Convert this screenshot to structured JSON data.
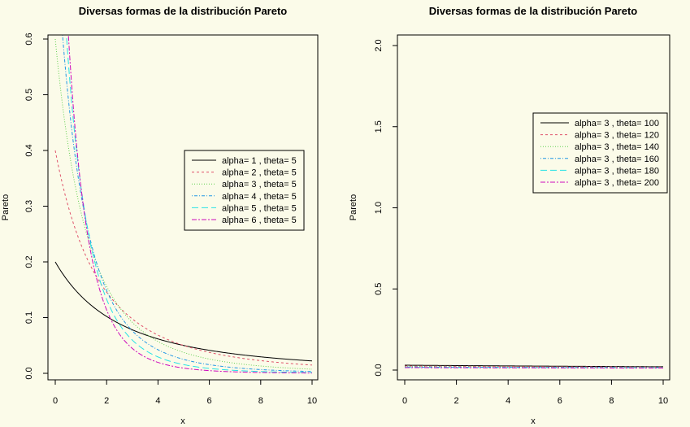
{
  "chart_data": [
    {
      "type": "line",
      "title": "Diversas formas de la distribución Pareto",
      "xlabel": "x",
      "ylabel": "Pareto",
      "xlim": [
        0,
        10
      ],
      "ylim": [
        0,
        0.6
      ],
      "xticks": [
        "0",
        "2",
        "4",
        "6",
        "8",
        "10"
      ],
      "yticks": [
        "0.0",
        "0.1",
        "0.2",
        "0.3",
        "0.4",
        "0.5",
        "0.6"
      ],
      "legend_position": "right",
      "series": [
        {
          "name": "alpha= 1  , theta= 5",
          "alpha": 1,
          "theta": 5,
          "color": "#000000",
          "dash": ""
        },
        {
          "name": "alpha= 2  , theta= 5",
          "alpha": 2,
          "theta": 5,
          "color": "#df536b",
          "dash": "3,3"
        },
        {
          "name": "alpha= 3  , theta= 5",
          "alpha": 3,
          "theta": 5,
          "color": "#61d04f",
          "dash": "1,2"
        },
        {
          "name": "alpha= 4  , theta= 5",
          "alpha": 4,
          "theta": 5,
          "color": "#2297e6",
          "dash": "1,2,4,2"
        },
        {
          "name": "alpha= 5  , theta= 5",
          "alpha": 5,
          "theta": 5,
          "color": "#28e2e5",
          "dash": "8,4"
        },
        {
          "name": "alpha= 6  , theta= 5",
          "alpha": 6,
          "theta": 5,
          "color": "#cd0bbc",
          "dash": "6,2,2,2"
        }
      ]
    },
    {
      "type": "line",
      "title": "Diversas formas de la distribución Pareto",
      "xlabel": "x",
      "ylabel": "Pareto",
      "xlim": [
        0,
        10
      ],
      "ylim": [
        0,
        2.0
      ],
      "xticks": [
        "0",
        "2",
        "4",
        "6",
        "8",
        "10"
      ],
      "yticks": [
        "0.0",
        "0.5",
        "1.0",
        "1.5",
        "2.0"
      ],
      "legend_position": "top-right",
      "series": [
        {
          "name": "alpha= 3  ,  theta= 100",
          "alpha": 3,
          "theta": 100,
          "color": "#000000",
          "dash": ""
        },
        {
          "name": "alpha= 3  ,  theta= 120",
          "alpha": 3,
          "theta": 120,
          "color": "#df536b",
          "dash": "3,3"
        },
        {
          "name": "alpha= 3  ,  theta= 140",
          "alpha": 3,
          "theta": 140,
          "color": "#61d04f",
          "dash": "1,2"
        },
        {
          "name": "alpha= 3  ,  theta= 160",
          "alpha": 3,
          "theta": 160,
          "color": "#2297e6",
          "dash": "1,2,4,2"
        },
        {
          "name": "alpha= 3  ,  theta= 180",
          "alpha": 3,
          "theta": 180,
          "color": "#28e2e5",
          "dash": "8,4"
        },
        {
          "name": "alpha= 3  ,  theta= 200",
          "alpha": 3,
          "theta": 200,
          "color": "#cd0bbc",
          "dash": "6,2,2,2"
        }
      ]
    }
  ]
}
